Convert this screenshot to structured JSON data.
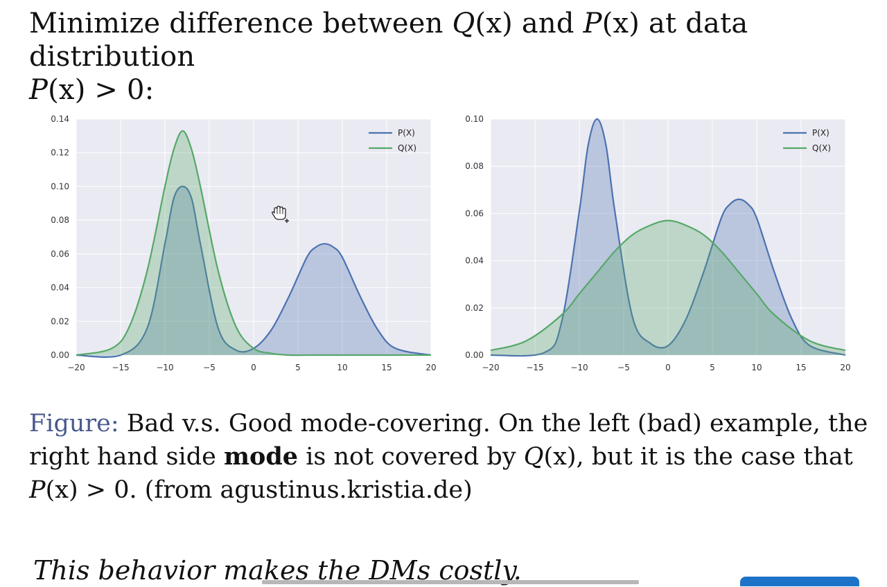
{
  "heading": {
    "line1_prefix": "Minimize difference between ",
    "q": "Q",
    "x1": "(x)",
    "and": " and ",
    "p": "P",
    "x2": "(x)",
    "suffix": " at data distribution",
    "line2_p": "P",
    "line2_x": "(x)",
    "line2_rest": " > 0:"
  },
  "caption": {
    "label": "Figure:",
    "text1": " Bad v.s. Good mode-covering. On the left (bad) example, the right hand side ",
    "bold": "mode",
    "text2": " is not covered by ",
    "q": "Q",
    "qx": "(x)",
    "text3": ", but it is the case that ",
    "p": "P",
    "px": "(x)",
    "text4": " > 0. (from agustinus.kristia.de)"
  },
  "closing_text": "This behavior makes the DMs costly.",
  "colors": {
    "p_series": "#4c72b0",
    "q_series": "#55a868",
    "plot_background": "#eaeaf2",
    "grid": "#ffffff"
  },
  "chart_data": [
    {
      "type": "area",
      "title": "",
      "xlabel": "",
      "ylabel": "",
      "xlim": [
        -20,
        20
      ],
      "ylim": [
        0,
        0.14
      ],
      "x_ticks": [
        -20,
        -15,
        -10,
        -5,
        0,
        5,
        10,
        15,
        20
      ],
      "y_ticks": [
        0.0,
        0.02,
        0.04,
        0.06,
        0.08,
        0.1,
        0.12,
        0.14
      ],
      "grid": true,
      "legend": "top-right",
      "series": [
        {
          "name": "P(X)",
          "x": [
            -20,
            -15,
            -12,
            -10,
            -9,
            -8,
            -7,
            -6,
            -4,
            -2,
            0,
            2,
            4,
            6,
            7,
            8,
            9,
            10,
            12,
            14,
            16,
            20
          ],
          "y": [
            0.0,
            0.0,
            0.016,
            0.066,
            0.093,
            0.1,
            0.093,
            0.066,
            0.016,
            0.003,
            0.004,
            0.015,
            0.035,
            0.058,
            0.064,
            0.066,
            0.064,
            0.058,
            0.035,
            0.015,
            0.004,
            0.0
          ]
        },
        {
          "name": "Q(X)",
          "x": [
            -20,
            -16,
            -14,
            -12,
            -10,
            -9,
            -8,
            -7,
            -6,
            -4,
            -2,
            0,
            2,
            4,
            6,
            8,
            20
          ],
          "y": [
            0.0,
            0.004,
            0.017,
            0.05,
            0.1,
            0.122,
            0.133,
            0.122,
            0.1,
            0.05,
            0.017,
            0.004,
            0.001,
            0.0,
            0.0,
            0.0,
            0.0
          ]
        }
      ]
    },
    {
      "type": "area",
      "title": "",
      "xlabel": "",
      "ylabel": "",
      "xlim": [
        -20,
        20
      ],
      "ylim": [
        0,
        0.1
      ],
      "x_ticks": [
        -20,
        -15,
        -10,
        -5,
        0,
        5,
        10,
        15,
        20
      ],
      "y_ticks": [
        0.0,
        0.02,
        0.04,
        0.06,
        0.08,
        0.1
      ],
      "grid": true,
      "legend": "top-right",
      "series": [
        {
          "name": "P(X)",
          "x": [
            -20,
            -14,
            -12,
            -10,
            -9,
            -8,
            -7,
            -6,
            -4,
            -2,
            0,
            2,
            4,
            6,
            7,
            8,
            9,
            10,
            12,
            14,
            16,
            20
          ],
          "y": [
            0.0,
            0.001,
            0.014,
            0.061,
            0.089,
            0.1,
            0.089,
            0.061,
            0.016,
            0.005,
            0.004,
            0.015,
            0.035,
            0.058,
            0.064,
            0.066,
            0.064,
            0.058,
            0.035,
            0.015,
            0.004,
            0.0
          ]
        },
        {
          "name": "Q(X)",
          "x": [
            -20,
            -16,
            -12,
            -10,
            -8,
            -6,
            -4,
            -2,
            0,
            2,
            4,
            6,
            8,
            10,
            12,
            16,
            20
          ],
          "y": [
            0.002,
            0.006,
            0.017,
            0.026,
            0.035,
            0.044,
            0.051,
            0.055,
            0.057,
            0.055,
            0.051,
            0.044,
            0.035,
            0.026,
            0.017,
            0.006,
            0.002
          ]
        }
      ]
    }
  ]
}
